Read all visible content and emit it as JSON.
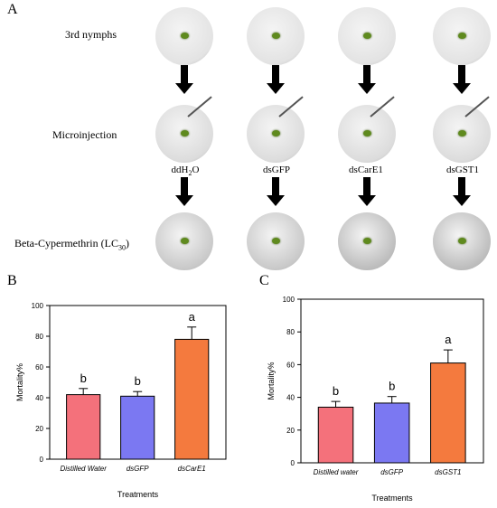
{
  "panel_a": {
    "letter": "A",
    "rows": [
      {
        "label": "3rd nymphs"
      },
      {
        "label": "Microinjection"
      },
      {
        "label_main": "Beta-Cypermethrin (LC",
        "label_sub": "30",
        "label_end": ")"
      }
    ],
    "treatments": [
      {
        "main": "ddH",
        "sub": "2",
        "end": "O"
      },
      {
        "main": "dsGFP",
        "sub": "",
        "end": ""
      },
      {
        "main": "dsCarE1",
        "sub": "",
        "end": ""
      },
      {
        "main": "dsGST1",
        "sub": "",
        "end": ""
      }
    ]
  },
  "chart_data": [
    {
      "panel": "B",
      "type": "bar",
      "categories": [
        "Distilled Water",
        "dsGFP",
        "dsCarE1"
      ],
      "values": [
        42,
        41,
        78
      ],
      "errors": [
        4,
        3,
        8
      ],
      "letters": [
        "b",
        "b",
        "a"
      ],
      "colors": [
        "#f4717b",
        "#7b78f2",
        "#f47a3e"
      ],
      "xlabel": "Treatments",
      "ylabel": "Mortality%",
      "ylim": [
        0,
        100
      ],
      "yticks": [
        0,
        20,
        40,
        60,
        80,
        100
      ]
    },
    {
      "panel": "C",
      "type": "bar",
      "categories": [
        "Distilled water",
        "dsGFP",
        "dsGST1"
      ],
      "values": [
        34,
        36.5,
        61
      ],
      "errors": [
        3.5,
        4,
        8
      ],
      "letters": [
        "b",
        "b",
        "a"
      ],
      "colors": [
        "#f4717b",
        "#7b78f2",
        "#f47a3e"
      ],
      "xlabel": "Treatments",
      "ylabel": "Mortality%",
      "ylim": [
        0,
        100
      ],
      "yticks": [
        0,
        20,
        40,
        60,
        80,
        100
      ]
    }
  ]
}
